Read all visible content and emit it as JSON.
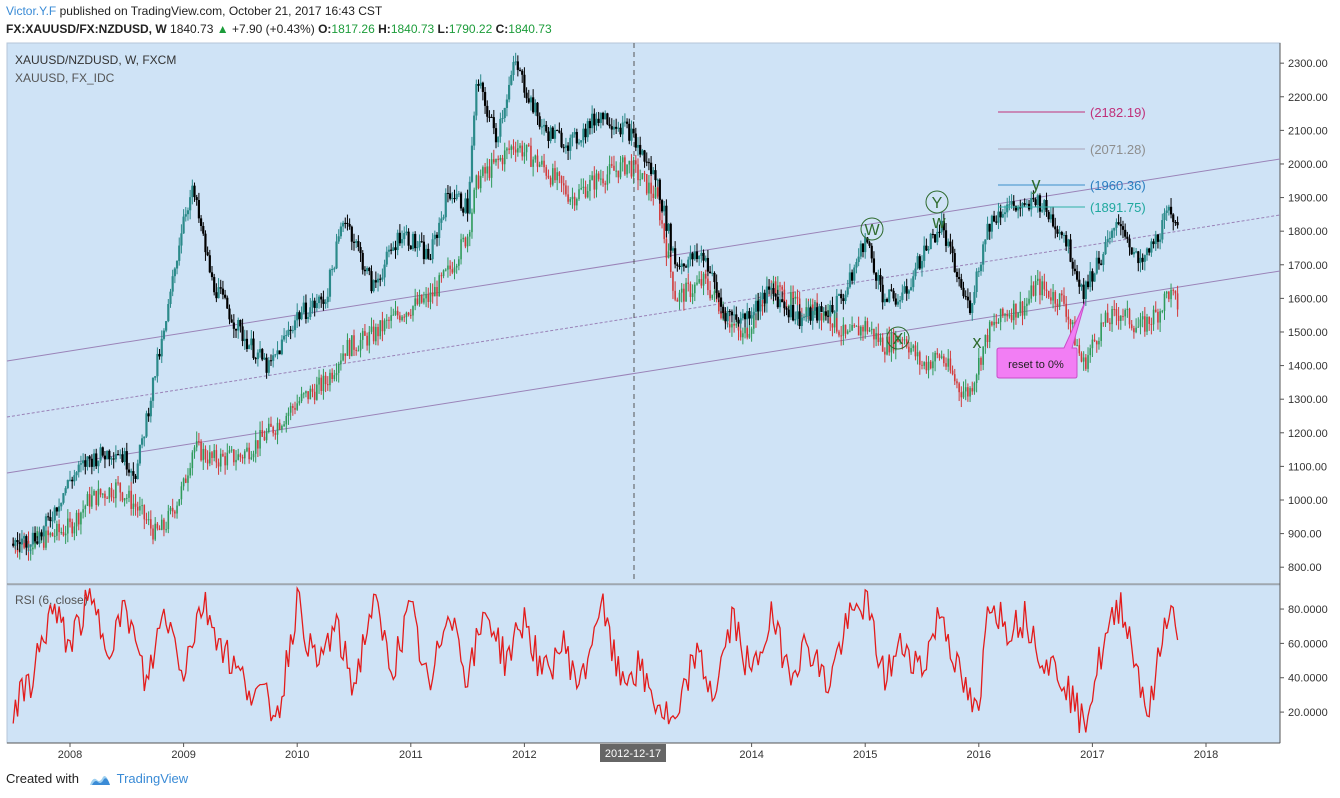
{
  "header": {
    "author": "Victor.Y.F",
    "published": "published on TradingView.com, October 21, 2017 16:43 CST",
    "symbol": "FX:XAUUSD/FX:NZDUSD, W",
    "last": "1840.73",
    "change": "+7.90 (+0.43%)",
    "o_label": "O:",
    "o": "1817.26",
    "h_label": "H:",
    "h": "1840.73",
    "l_label": "L:",
    "l": "1790.22",
    "c_label": "C:",
    "c": "1840.73"
  },
  "panes": {
    "main_title": "XAUUSD/NZDUSD, W, FXCM",
    "compare_title": "XAUUSD, FX_IDC",
    "rsi_title": "RSI (6, close)"
  },
  "crosshair_date": "2012-12-17",
  "footer": {
    "created_with": "Created with",
    "brand": "TradingView"
  },
  "colors": {
    "background": "#cfe3f6",
    "up_candle": "#2b8a8a",
    "down_candle": "#000000",
    "compare_up": "#2e9a5a",
    "compare_down": "#d23a3a",
    "rsi_line": "#e31c1c",
    "channel": "#9a83b8",
    "callout": "#f27ef4"
  },
  "annotations": {
    "wave_labels": [
      "W",
      "X",
      "Y",
      "w",
      "x",
      "y"
    ],
    "callout": "reset to 0%",
    "fib_levels": [
      "(2182.19)",
      "(2071.28)",
      "(1960.36)",
      "(1891.75)"
    ]
  },
  "chart_data": [
    {
      "type": "candlestick",
      "title": "XAUUSD/NZDUSD, W, FXCM",
      "x_ticks": [
        "2008",
        "2009",
        "2010",
        "2011",
        "2012",
        "2014",
        "2015",
        "2016",
        "2017",
        "2018"
      ],
      "y_ticks": [
        "800.00",
        "900.00",
        "1000.00",
        "1100.00",
        "1200.00",
        "1300.00",
        "1400.00",
        "1500.00",
        "1600.00",
        "1700.00",
        "1800.00",
        "1900.00",
        "2000.00",
        "2100.00",
        "2200.00",
        "2300.00"
      ],
      "ylim": [
        750,
        2360
      ],
      "series": [
        {
          "name": "XAUUSD/NZDUSD",
          "points": [
            [
              "2007-07",
              870
            ],
            [
              "2007-10",
              900
            ],
            [
              "2008-01",
              1060
            ],
            [
              "2008-03",
              1120
            ],
            [
              "2008-06",
              1150
            ],
            [
              "2008-08",
              1080
            ],
            [
              "2008-10",
              1380
            ],
            [
              "2008-11",
              1500
            ],
            [
              "2009-01",
              1850
            ],
            [
              "2009-02",
              1920
            ],
            [
              "2009-04",
              1650
            ],
            [
              "2009-07",
              1500
            ],
            [
              "2009-10",
              1390
            ],
            [
              "2010-01",
              1550
            ],
            [
              "2010-04",
              1600
            ],
            [
              "2010-06",
              1850
            ],
            [
              "2010-09",
              1630
            ],
            [
              "2010-12",
              1800
            ],
            [
              "2011-03",
              1720
            ],
            [
              "2011-05",
              1920
            ],
            [
              "2011-07",
              1870
            ],
            [
              "2011-08",
              2250
            ],
            [
              "2011-10",
              2080
            ],
            [
              "2011-12",
              2300
            ],
            [
              "2012-03",
              2100
            ],
            [
              "2012-06",
              2060
            ],
            [
              "2012-09",
              2150
            ],
            [
              "2012-12",
              2100
            ],
            [
              "2013-03",
              1950
            ],
            [
              "2013-05",
              1700
            ],
            [
              "2013-08",
              1730
            ],
            [
              "2013-10",
              1560
            ],
            [
              "2013-12",
              1540
            ],
            [
              "2014-03",
              1620
            ],
            [
              "2014-06",
              1540
            ],
            [
              "2014-09",
              1560
            ],
            [
              "2014-11",
              1620
            ],
            [
              "2015-01",
              1780
            ],
            [
              "2015-03",
              1600
            ],
            [
              "2015-05",
              1600
            ],
            [
              "2015-07",
              1730
            ],
            [
              "2015-09",
              1820
            ],
            [
              "2015-11",
              1640
            ],
            [
              "2015-12",
              1570
            ],
            [
              "2016-02",
              1820
            ],
            [
              "2016-04",
              1880
            ],
            [
              "2016-06",
              1860
            ],
            [
              "2016-07",
              1900
            ],
            [
              "2016-10",
              1790
            ],
            [
              "2016-12",
              1620
            ],
            [
              "2017-02",
              1730
            ],
            [
              "2017-04",
              1830
            ],
            [
              "2017-06",
              1690
            ],
            [
              "2017-08",
              1790
            ],
            [
              "2017-09",
              1850
            ],
            [
              "2017-10",
              1840.73
            ]
          ]
        },
        {
          "name": "XAUUSD",
          "points": [
            [
              "2007-07",
              870
            ],
            [
              "2007-10",
              880
            ],
            [
              "2008-01",
              920
            ],
            [
              "2008-03",
              1000
            ],
            [
              "2008-06",
              1040
            ],
            [
              "2008-08",
              980
            ],
            [
              "2008-10",
              900
            ],
            [
              "2008-11",
              920
            ],
            [
              "2009-01",
              1040
            ],
            [
              "2009-02",
              1160
            ],
            [
              "2009-04",
              1120
            ],
            [
              "2009-07",
              1130
            ],
            [
              "2009-10",
              1200
            ],
            [
              "2010-01",
              1290
            ],
            [
              "2010-04",
              1350
            ],
            [
              "2010-06",
              1450
            ],
            [
              "2010-09",
              1490
            ],
            [
              "2010-12",
              1560
            ],
            [
              "2011-03",
              1600
            ],
            [
              "2011-05",
              1680
            ],
            [
              "2011-07",
              1790
            ],
            [
              "2011-08",
              1950
            ],
            [
              "2011-10",
              2000
            ],
            [
              "2011-12",
              2060
            ],
            [
              "2012-03",
              1990
            ],
            [
              "2012-06",
              1900
            ],
            [
              "2012-09",
              1960
            ],
            [
              "2012-12",
              2000
            ],
            [
              "2013-03",
              1900
            ],
            [
              "2013-05",
              1600
            ],
            [
              "2013-08",
              1650
            ],
            [
              "2013-10",
              1560
            ],
            [
              "2013-12",
              1480
            ],
            [
              "2014-03",
              1640
            ],
            [
              "2014-06",
              1570
            ],
            [
              "2014-09",
              1560
            ],
            [
              "2014-11",
              1480
            ],
            [
              "2015-01",
              1520
            ],
            [
              "2015-03",
              1460
            ],
            [
              "2015-05",
              1490
            ],
            [
              "2015-07",
              1400
            ],
            [
              "2015-09",
              1430
            ],
            [
              "2015-11",
              1330
            ],
            [
              "2015-12",
              1320
            ],
            [
              "2016-02",
              1500
            ],
            [
              "2016-04",
              1560
            ],
            [
              "2016-06",
              1580
            ],
            [
              "2016-07",
              1640
            ],
            [
              "2016-10",
              1590
            ],
            [
              "2016-12",
              1400
            ],
            [
              "2017-02",
              1520
            ],
            [
              "2017-04",
              1560
            ],
            [
              "2017-06",
              1510
            ],
            [
              "2017-08",
              1560
            ],
            [
              "2017-09",
              1620
            ],
            [
              "2017-10",
              1580
            ]
          ]
        }
      ]
    },
    {
      "type": "line",
      "title": "RSI (6, close)",
      "y_ticks": [
        "20.0000",
        "40.0000",
        "60.0000",
        "80.0000"
      ],
      "ylim": [
        2,
        94
      ],
      "series": [
        {
          "name": "RSI (6, close)",
          "points": [
            [
              "2007-07",
              20
            ],
            [
              "2007-09",
              40
            ],
            [
              "2007-11",
              80
            ],
            [
              "2008-01",
              60
            ],
            [
              "2008-03",
              85
            ],
            [
              "2008-05",
              60
            ],
            [
              "2008-07",
              80
            ],
            [
              "2008-09",
              35
            ],
            [
              "2008-11",
              80
            ],
            [
              "2009-01",
              45
            ],
            [
              "2009-03",
              85
            ],
            [
              "2009-05",
              60
            ],
            [
              "2009-07",
              40
            ],
            [
              "2009-09",
              30
            ],
            [
              "2009-11",
              20
            ],
            [
              "2010-01",
              85
            ],
            [
              "2010-03",
              45
            ],
            [
              "2010-05",
              70
            ],
            [
              "2010-07",
              35
            ],
            [
              "2010-09",
              85
            ],
            [
              "2010-11",
              45
            ],
            [
              "2011-01",
              80
            ],
            [
              "2011-03",
              30
            ],
            [
              "2011-05",
              85
            ],
            [
              "2011-07",
              40
            ],
            [
              "2011-09",
              80
            ],
            [
              "2011-11",
              50
            ],
            [
              "2012-01",
              75
            ],
            [
              "2012-03",
              40
            ],
            [
              "2012-05",
              60
            ],
            [
              "2012-07",
              35
            ],
            [
              "2012-09",
              85
            ],
            [
              "2012-11",
              40
            ],
            [
              "2013-01",
              45
            ],
            [
              "2013-03",
              25
            ],
            [
              "2013-05",
              10
            ],
            [
              "2013-07",
              55
            ],
            [
              "2013-09",
              30
            ],
            [
              "2013-11",
              75
            ],
            [
              "2014-01",
              40
            ],
            [
              "2014-03",
              75
            ],
            [
              "2014-05",
              45
            ],
            [
              "2014-07",
              60
            ],
            [
              "2014-09",
              35
            ],
            [
              "2014-11",
              70
            ],
            [
              "2015-01",
              85
            ],
            [
              "2015-03",
              40
            ],
            [
              "2015-05",
              60
            ],
            [
              "2015-07",
              45
            ],
            [
              "2015-09",
              80
            ],
            [
              "2015-11",
              40
            ],
            [
              "2016-01",
              15
            ],
            [
              "2016-02",
              88
            ],
            [
              "2016-04",
              70
            ],
            [
              "2016-06",
              75
            ],
            [
              "2016-08",
              50
            ],
            [
              "2016-10",
              40
            ],
            [
              "2016-12",
              12
            ],
            [
              "2017-02",
              55
            ],
            [
              "2017-04",
              85
            ],
            [
              "2017-06",
              40
            ],
            [
              "2017-07",
              18
            ],
            [
              "2017-09",
              83
            ],
            [
              "2017-10",
              68
            ]
          ]
        }
      ]
    }
  ]
}
